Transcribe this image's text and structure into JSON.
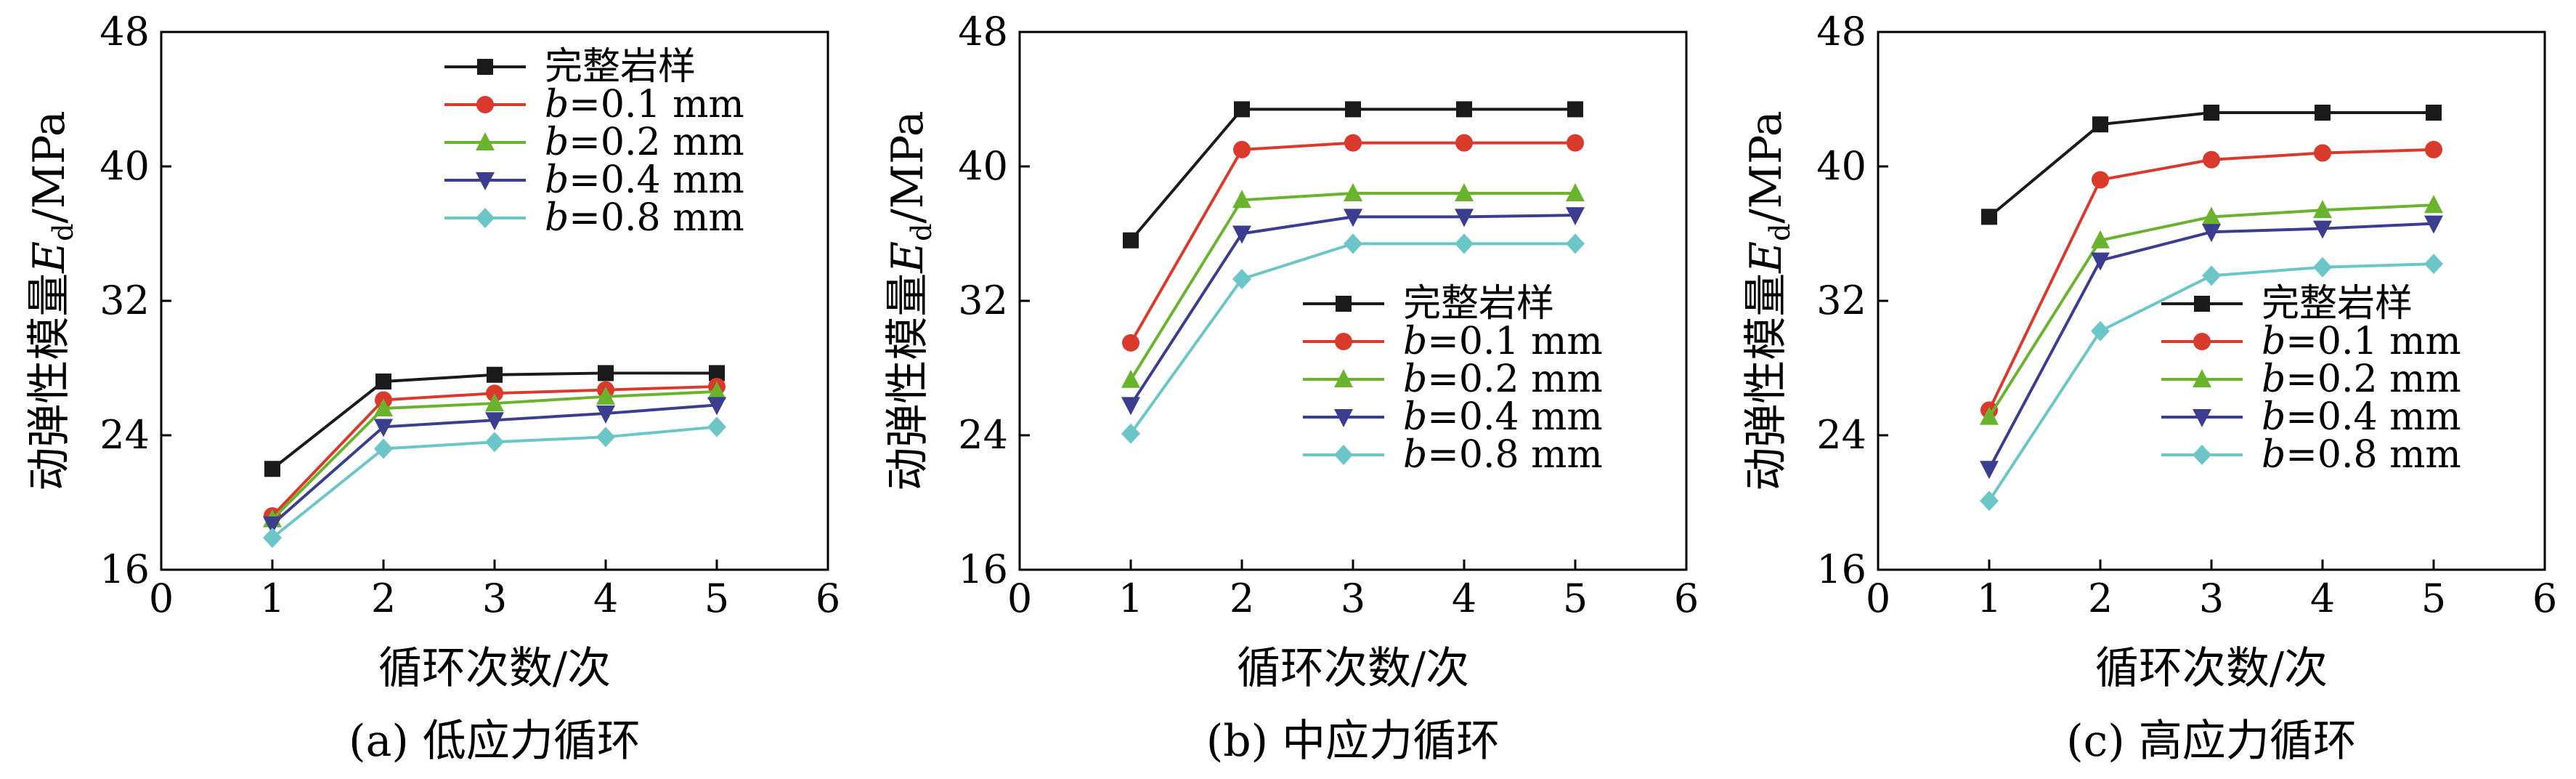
{
  "chart_data": [
    {
      "type": "line",
      "caption": "(a) 低应力循环",
      "xlabel": "循环次数/次",
      "ylabel": "动弹性模量E_d/MPa",
      "ylabel_main": "动弹性模量",
      "ylabel_var": "E",
      "ylabel_sub": "d",
      "ylabel_unit": "/MPa",
      "xlim": [
        0,
        6
      ],
      "ylim": [
        16,
        48
      ],
      "xticks": [
        "0",
        "1",
        "2",
        "3",
        "4",
        "5",
        "6"
      ],
      "yticks": [
        "16",
        "24",
        "32",
        "40",
        "48"
      ],
      "legend_position": "top-right",
      "x": [
        1,
        2,
        3,
        4,
        5
      ],
      "series": [
        {
          "name": "完整岩样",
          "var": "",
          "label": "完整岩样",
          "color": "#1a1a1a",
          "marker": "square",
          "values": [
            22.0,
            27.2,
            27.6,
            27.7,
            27.7
          ]
        },
        {
          "name": "b=0.1 mm",
          "var": "b",
          "label": "=0.1 mm",
          "color": "#d93a2b",
          "marker": "circle",
          "values": [
            19.2,
            26.1,
            26.5,
            26.7,
            26.9
          ]
        },
        {
          "name": "b=0.2 mm",
          "var": "b",
          "label": "=0.2 mm",
          "color": "#6ab42d",
          "marker": "triangle-up",
          "values": [
            19.0,
            25.6,
            25.9,
            26.3,
            26.6
          ]
        },
        {
          "name": "b=0.4 mm",
          "var": "b",
          "label": "=0.4 mm",
          "color": "#3b3d8f",
          "marker": "triangle-down",
          "values": [
            18.7,
            24.5,
            24.9,
            25.3,
            25.8
          ]
        },
        {
          "name": "b=0.8 mm",
          "var": "b",
          "label": "=0.8 mm",
          "color": "#6cc6c8",
          "marker": "diamond",
          "values": [
            17.9,
            23.2,
            23.6,
            23.9,
            24.5
          ]
        }
      ]
    },
    {
      "type": "line",
      "caption": "(b) 中应力循环",
      "xlabel": "循环次数/次",
      "ylabel": "动弹性模量E_d/MPa",
      "ylabel_main": "动弹性模量",
      "ylabel_var": "E",
      "ylabel_sub": "d",
      "ylabel_unit": "/MPa",
      "xlim": [
        0,
        6
      ],
      "ylim": [
        16,
        48
      ],
      "xticks": [
        "0",
        "1",
        "2",
        "3",
        "4",
        "5",
        "6"
      ],
      "yticks": [
        "16",
        "24",
        "32",
        "40",
        "48"
      ],
      "legend_position": "bottom-right",
      "x": [
        1,
        2,
        3,
        4,
        5
      ],
      "series": [
        {
          "name": "完整岩样",
          "var": "",
          "label": "完整岩样",
          "color": "#1a1a1a",
          "marker": "square",
          "values": [
            35.6,
            43.4,
            43.4,
            43.4,
            43.4
          ]
        },
        {
          "name": "b=0.1 mm",
          "var": "b",
          "label": "=0.1 mm",
          "color": "#d93a2b",
          "marker": "circle",
          "values": [
            29.5,
            41.0,
            41.4,
            41.4,
            41.4
          ]
        },
        {
          "name": "b=0.2 mm",
          "var": "b",
          "label": "=0.2 mm",
          "color": "#6ab42d",
          "marker": "triangle-up",
          "values": [
            27.3,
            38.0,
            38.4,
            38.4,
            38.4
          ]
        },
        {
          "name": "b=0.4 mm",
          "var": "b",
          "label": "=0.4 mm",
          "color": "#3b3d8f",
          "marker": "triangle-down",
          "values": [
            25.8,
            36.0,
            37.0,
            37.0,
            37.1
          ]
        },
        {
          "name": "b=0.8 mm",
          "var": "b",
          "label": "=0.8 mm",
          "color": "#6cc6c8",
          "marker": "diamond",
          "values": [
            24.1,
            33.3,
            35.4,
            35.4,
            35.4
          ]
        }
      ]
    },
    {
      "type": "line",
      "caption": "(c) 高应力循环",
      "xlabel": "循环次数/次",
      "ylabel": "动弹性模量E_d/MPa",
      "ylabel_main": "动弹性模量",
      "ylabel_var": "E",
      "ylabel_sub": "d",
      "ylabel_unit": "/MPa",
      "xlim": [
        0,
        6
      ],
      "ylim": [
        16,
        48
      ],
      "xticks": [
        "0",
        "1",
        "2",
        "3",
        "4",
        "5",
        "6"
      ],
      "yticks": [
        "16",
        "24",
        "32",
        "40",
        "48"
      ],
      "legend_position": "bottom-right",
      "x": [
        1,
        2,
        3,
        4,
        5
      ],
      "series": [
        {
          "name": "完整岩样",
          "var": "",
          "label": "完整岩样",
          "color": "#1a1a1a",
          "marker": "square",
          "values": [
            37.0,
            42.5,
            43.2,
            43.2,
            43.2
          ]
        },
        {
          "name": "b=0.1 mm",
          "var": "b",
          "label": "=0.1 mm",
          "color": "#d93a2b",
          "marker": "circle",
          "values": [
            25.5,
            39.2,
            40.4,
            40.8,
            41.0
          ]
        },
        {
          "name": "b=0.2 mm",
          "var": "b",
          "label": "=0.2 mm",
          "color": "#6ab42d",
          "marker": "triangle-up",
          "values": [
            25.1,
            35.6,
            37.0,
            37.4,
            37.7
          ]
        },
        {
          "name": "b=0.4 mm",
          "var": "b",
          "label": "=0.4 mm",
          "color": "#3b3d8f",
          "marker": "triangle-down",
          "values": [
            22.0,
            34.4,
            36.1,
            36.3,
            36.6
          ]
        },
        {
          "name": "b=0.8 mm",
          "var": "b",
          "label": "=0.8 mm",
          "color": "#6cc6c8",
          "marker": "diamond",
          "values": [
            20.1,
            30.2,
            33.5,
            34.0,
            34.2
          ]
        }
      ]
    }
  ]
}
